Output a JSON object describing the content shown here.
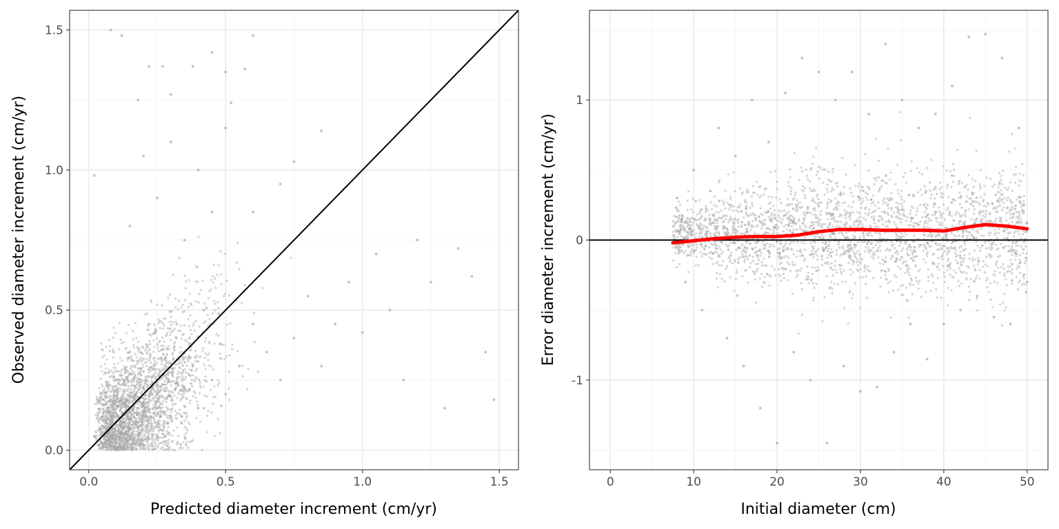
{
  "chart_data": [
    {
      "type": "scatter",
      "xlabel": "Predicted diameter increment (cm/yr)",
      "ylabel": "Observed diameter increment (cm/yr)",
      "xlim": [
        -0.07,
        1.57
      ],
      "ylim": [
        -0.07,
        1.57
      ],
      "x_ticks": [
        0.0,
        0.5,
        1.0,
        1.5
      ],
      "x_tick_labels": [
        "0.0",
        "0.5",
        "1.0",
        "1.5"
      ],
      "y_ticks": [
        0.0,
        0.5,
        1.0,
        1.5
      ],
      "y_tick_labels": [
        "0.0",
        "0.5",
        "1.0",
        "1.5"
      ],
      "grid": true,
      "point_color": "#a6a6a6",
      "reference_line": {
        "type": "identity",
        "slope": 1,
        "intercept": 0,
        "color": "#000000"
      },
      "points": [
        [
          0.02,
          0.05
        ],
        [
          0.05,
          0.12
        ],
        [
          0.08,
          0.03
        ],
        [
          0.1,
          0.25
        ],
        [
          0.12,
          0.18
        ],
        [
          0.15,
          0.35
        ],
        [
          0.18,
          0.1
        ],
        [
          0.2,
          0.28
        ],
        [
          0.22,
          0.45
        ],
        [
          0.25,
          0.2
        ],
        [
          0.28,
          0.33
        ],
        [
          0.3,
          0.12
        ],
        [
          0.32,
          0.4
        ],
        [
          0.35,
          0.22
        ],
        [
          0.38,
          0.3
        ],
        [
          0.4,
          0.15
        ],
        [
          0.42,
          0.5
        ],
        [
          0.45,
          0.25
        ],
        [
          0.48,
          0.38
        ],
        [
          0.5,
          0.2
        ],
        [
          0.55,
          0.3
        ],
        [
          0.6,
          0.45
        ],
        [
          0.65,
          0.35
        ],
        [
          0.7,
          0.25
        ],
        [
          0.75,
          0.4
        ],
        [
          0.8,
          0.55
        ],
        [
          0.85,
          0.3
        ],
        [
          0.9,
          0.45
        ],
        [
          0.95,
          0.6
        ],
        [
          1.0,
          0.42
        ],
        [
          1.05,
          0.7
        ],
        [
          1.1,
          0.5
        ],
        [
          1.15,
          0.25
        ],
        [
          1.2,
          0.75
        ],
        [
          1.25,
          0.6
        ],
        [
          1.3,
          0.15
        ],
        [
          1.35,
          0.72
        ],
        [
          1.4,
          0.62
        ],
        [
          1.45,
          0.35
        ],
        [
          1.48,
          0.18
        ],
        [
          0.15,
          0.8
        ],
        [
          0.2,
          1.05
        ],
        [
          0.25,
          0.9
        ],
        [
          0.3,
          1.1
        ],
        [
          0.35,
          0.75
        ],
        [
          0.4,
          1.0
        ],
        [
          0.45,
          0.85
        ],
        [
          0.5,
          1.15
        ],
        [
          0.6,
          0.85
        ],
        [
          0.7,
          0.95
        ],
        [
          0.08,
          1.5
        ],
        [
          0.12,
          1.48
        ],
        [
          0.22,
          1.37
        ],
        [
          0.27,
          1.37
        ],
        [
          0.38,
          1.37
        ],
        [
          0.45,
          1.42
        ],
        [
          0.5,
          1.35
        ],
        [
          0.57,
          1.36
        ],
        [
          0.6,
          1.48
        ],
        [
          0.18,
          1.25
        ],
        [
          0.3,
          1.27
        ],
        [
          0.52,
          1.24
        ],
        [
          0.85,
          1.14
        ],
        [
          0.02,
          0.98
        ],
        [
          0.75,
          1.03
        ]
      ]
    },
    {
      "type": "scatter",
      "xlabel": "Initial diameter (cm)",
      "ylabel": "Error diameter increment (cm/yr)",
      "xlim": [
        -2.5,
        52.5
      ],
      "ylim": [
        -1.64,
        1.64
      ],
      "x_ticks": [
        0,
        10,
        20,
        30,
        40,
        50
      ],
      "x_tick_labels": [
        "0",
        "10",
        "20",
        "30",
        "40",
        "50"
      ],
      "y_ticks": [
        -1,
        0,
        1
      ],
      "y_tick_labels": [
        "-1",
        "0",
        "1"
      ],
      "grid": true,
      "point_color": "#a6a6a6",
      "reference_line": {
        "type": "horizontal",
        "y": 0,
        "color": "#000000"
      },
      "smooth_line": {
        "color": "#ff0000",
        "x": [
          7.5,
          10,
          12.5,
          15,
          17.5,
          20,
          22.5,
          25,
          27.5,
          30,
          32.5,
          35,
          37.5,
          40,
          42.5,
          45,
          47.5,
          50
        ],
        "y": [
          -0.02,
          -0.005,
          0.01,
          0.02,
          0.025,
          0.025,
          0.035,
          0.06,
          0.075,
          0.075,
          0.07,
          0.07,
          0.07,
          0.065,
          0.09,
          0.11,
          0.1,
          0.08
        ]
      },
      "points": [
        [
          8,
          0.3
        ],
        [
          9,
          -0.3
        ],
        [
          10,
          0.5
        ],
        [
          11,
          -0.5
        ],
        [
          12,
          0.35
        ],
        [
          13,
          0.8
        ],
        [
          14,
          -0.7
        ],
        [
          15,
          0.6
        ],
        [
          16,
          -0.9
        ],
        [
          17,
          1.0
        ],
        [
          18,
          -1.2
        ],
        [
          19,
          0.7
        ],
        [
          20,
          -1.45
        ],
        [
          21,
          1.05
        ],
        [
          22,
          -0.8
        ],
        [
          23,
          1.3
        ],
        [
          24,
          -1.0
        ],
        [
          25,
          1.2
        ],
        [
          26,
          -1.45
        ],
        [
          27,
          1.0
        ],
        [
          28,
          -0.9
        ],
        [
          29,
          1.2
        ],
        [
          30,
          -1.08
        ],
        [
          31,
          0.9
        ],
        [
          32,
          -1.05
        ],
        [
          33,
          1.4
        ],
        [
          34,
          -0.8
        ],
        [
          35,
          1.0
        ],
        [
          36,
          -0.6
        ],
        [
          37,
          0.8
        ],
        [
          38,
          -0.85
        ],
        [
          39,
          0.9
        ],
        [
          40,
          -0.6
        ],
        [
          41,
          1.1
        ],
        [
          42,
          -0.5
        ],
        [
          43,
          1.45
        ],
        [
          44,
          -0.4
        ],
        [
          45,
          1.47
        ],
        [
          46,
          -0.55
        ],
        [
          47,
          1.3
        ],
        [
          48,
          -0.6
        ],
        [
          49,
          0.8
        ],
        [
          50,
          -0.3
        ]
      ]
    }
  ]
}
